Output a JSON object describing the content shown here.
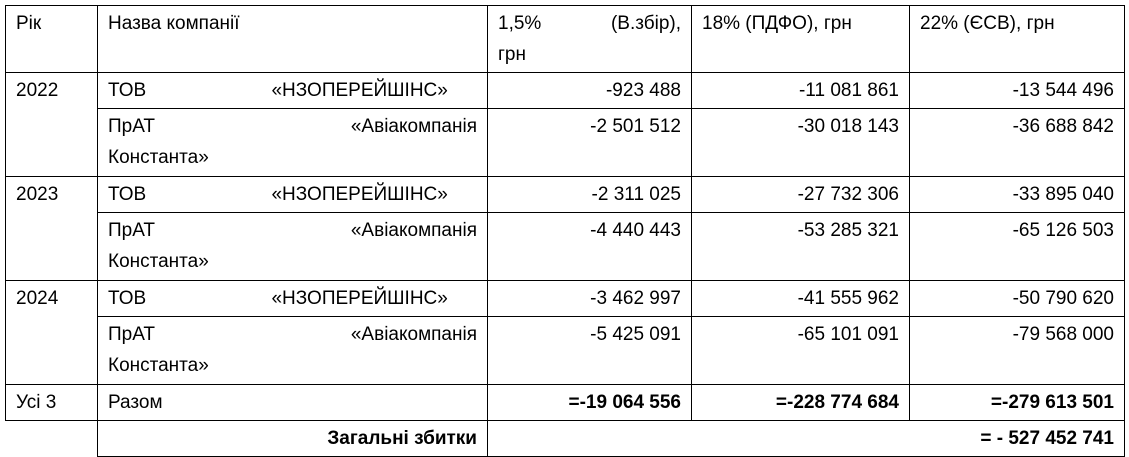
{
  "table": {
    "header": [
      "Рік",
      "Назва компанії",
      "1,5% (В.збір), грн",
      "18% (ПДФО), грн",
      "22% (ЄСВ), грн"
    ],
    "groups": [
      {
        "year": "2022",
        "companies": [
          {
            "name": "ТОВ «НЗОПЕРЕЙШІНС»",
            "values": [
              "-923 488",
              "-11 081 861",
              "-13 544 496"
            ]
          },
          {
            "name": "ПрАТ «Авіакомпанія Константа»",
            "values": [
              "-2 501 512",
              "-30 018 143",
              "-36 688 842"
            ]
          }
        ]
      },
      {
        "year": "2023",
        "companies": [
          {
            "name": "ТОВ «НЗОПЕРЕЙШІНС»",
            "values": [
              "-2 311 025",
              "-27 732 306",
              "-33 895 040"
            ]
          },
          {
            "name": "ПрАТ «Авіакомпанія Константа»",
            "values": [
              "-4 440 443",
              "-53 285 321",
              "-65 126 503"
            ]
          }
        ]
      },
      {
        "year": "2024",
        "companies": [
          {
            "name": "ТОВ «НЗОПЕРЕЙШІНС»",
            "values": [
              "-3 462 997",
              "-41 555 962",
              "-50 790 620"
            ]
          },
          {
            "name": "ПрАТ «Авіакомпанія Константа»",
            "values": [
              "-5 425 091",
              "-65 101 091",
              "-79 568 000"
            ]
          }
        ]
      }
    ],
    "total": {
      "year": "Усі 3",
      "name": "Разом",
      "values": [
        "=-19 064 556",
        "=-228 774 684",
        "=-279 613 501"
      ]
    },
    "grand_total": {
      "label": "Загальні збитки",
      "value": "= - 527 452 741"
    }
  }
}
